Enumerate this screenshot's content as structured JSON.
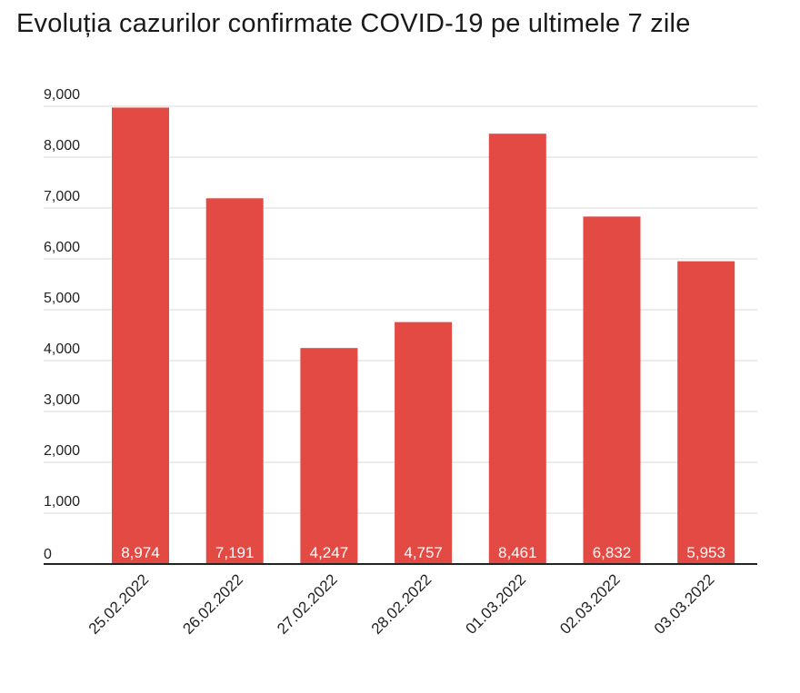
{
  "chart_data": {
    "type": "bar",
    "title": "Evoluția cazurilor confirmate COVID-19 pe ultimele 7 zile",
    "categories": [
      "25.02.2022",
      "26.02.2022",
      "27.02.2022",
      "28.02.2022",
      "01.03.2022",
      "02.03.2022",
      "03.03.2022"
    ],
    "values": [
      8974,
      7191,
      4247,
      4757,
      8461,
      6832,
      5953
    ],
    "data_labels": [
      "8,974",
      "7,191",
      "4,247",
      "4,757",
      "8,461",
      "6,832",
      "5,953"
    ],
    "yticks": [
      0,
      1000,
      2000,
      3000,
      4000,
      5000,
      6000,
      7000,
      8000,
      9000
    ],
    "ytick_labels": [
      "0",
      "1,000",
      "2,000",
      "3,000",
      "4,000",
      "5,000",
      "6,000",
      "7,000",
      "8,000",
      "9,000"
    ],
    "ylim": [
      0,
      9000
    ],
    "xlabel": "",
    "ylabel": "",
    "grid": true,
    "bar_color": "#e34a44",
    "grid_color": "#d9d9d9",
    "axis_color": "#222222"
  }
}
